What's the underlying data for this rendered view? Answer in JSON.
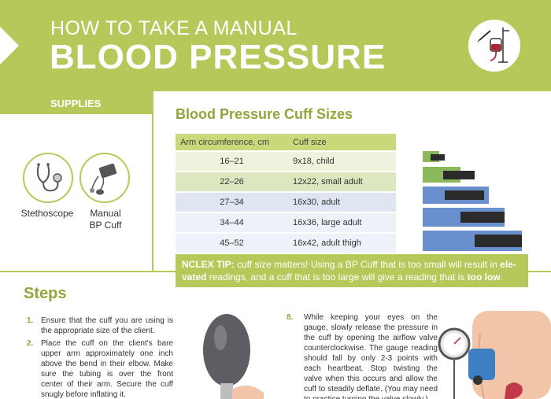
{
  "header": {
    "line1": "HOW TO TAKE A MANUAL",
    "line2": "BLOOD PRESSURE"
  },
  "supplies": {
    "title": "SUPPLIES",
    "items": [
      {
        "label": "Stethoscope",
        "icon": "stethoscope-icon"
      },
      {
        "label": "Manual BP Cuff",
        "icon": "bp-cuff-icon"
      }
    ]
  },
  "cuff_sizes": {
    "title": "Blood Pressure Cuff Sizes",
    "headers": [
      "Arm circumference, cm",
      "Cuff size"
    ],
    "rows": [
      [
        "16–21",
        "9x18, child"
      ],
      [
        "22–26",
        "12x22, small adult"
      ],
      [
        "27–34",
        "16x30, adult"
      ],
      [
        "34–44",
        "16x36, large adult"
      ],
      [
        "45–52",
        "16x42, adult thigh"
      ]
    ]
  },
  "nclex": {
    "label": "NCLEX TIP:",
    "text_a": " cuff size matters! Using a BP Cuff that is too small will result in ",
    "bold_a": "ele-vated",
    "text_b": " readings, and a cuff that is too large will give a reading that is ",
    "bold_b": "too low",
    "text_c": "."
  },
  "steps": {
    "title": "Steps",
    "items": [
      {
        "num": "1.",
        "text": "Ensure that the cuff you are using is the appropriate size of the client."
      },
      {
        "num": "2.",
        "text": "Place the cuff on the client's bare upper arm approximately one inch above the bend in their elbow. Make sure the tubing is over the front center of their arm. Secure the cuff snugly before inflating it."
      },
      {
        "num": "8.",
        "text": "While keeping your eyes on the gauge, slowly release the pressure in the cuff by opening the airflow valve counterclockwise. The gauge reading should fall by only 2-3 points with each heartbeat. Stop twisting the valve when this occurs and allow the cuff to steadily deflate. (You may need to practice turning the valve slowly.)"
      }
    ]
  },
  "colors": {
    "accent": "#b5c95a",
    "accent_text": "#8ea63a",
    "cuff_green": "#8bb85a",
    "cuff_blue": "#6a8fcf"
  }
}
